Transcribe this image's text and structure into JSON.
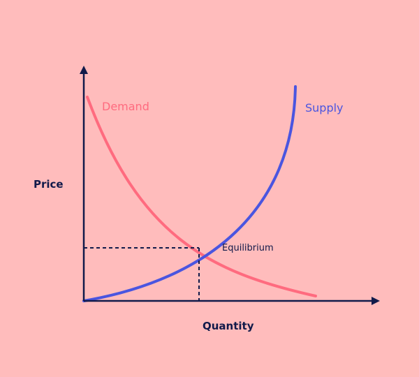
{
  "diagram": {
    "axis_y_label": "Price",
    "axis_x_label": "Quantity",
    "curves": [
      {
        "key": "demand",
        "name": "Demand",
        "color": "#ff6b7f"
      },
      {
        "key": "supply",
        "name": "Supply",
        "color": "#4a55e0"
      }
    ],
    "equilibrium_label": "Equilibrium",
    "colors": {
      "background": "#ffbcbc",
      "axes": "#111a4a",
      "text_dark": "#111a4a"
    }
  }
}
